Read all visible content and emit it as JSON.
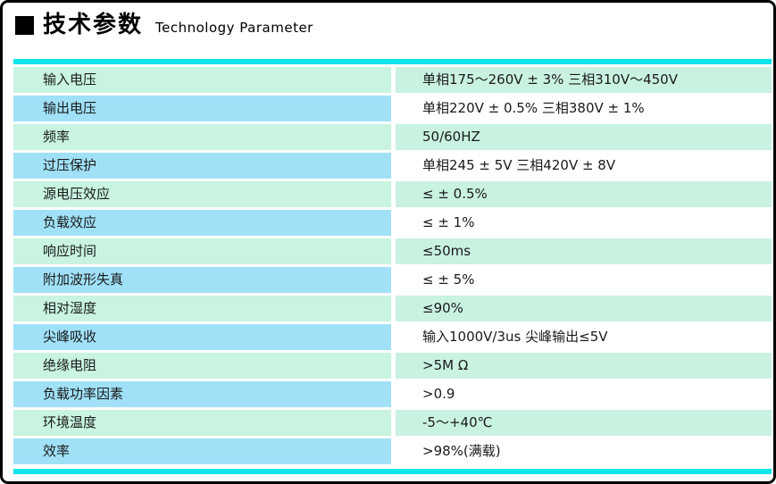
{
  "header": {
    "title_zh": "技术参数",
    "title_en": "Technology Parameter"
  },
  "colors": {
    "accent_cyan": "#0ce5ea",
    "row_left_mint": "#c8f4e0",
    "row_left_blue": "#a0e1f8",
    "row_right_mint": "#c9f2e0",
    "row_right_white": "#ffffff",
    "text": "#1a1a1a"
  },
  "table": {
    "rows": [
      {
        "label": "输入电压",
        "value": "单相175～260V ± 3% 三相310V～450V"
      },
      {
        "label": "输出电压",
        "value": "单相220V ± 0.5% 三相380V ± 1%"
      },
      {
        "label": "频率",
        "value": "50/60HZ"
      },
      {
        "label": "过压保护",
        "value": "单相245 ± 5V 三相420V ± 8V"
      },
      {
        "label": "源电压效应",
        "value": "≤ ± 0.5%"
      },
      {
        "label": "负载效应",
        "value": "≤ ± 1%"
      },
      {
        "label": "响应时间",
        "value": "≤50ms"
      },
      {
        "label": "附加波形失真",
        "value": "≤ ± 5%"
      },
      {
        "label": "相对湿度",
        "value": "≤90%"
      },
      {
        "label": "尖峰吸收",
        "value": "输入1000V/3us  尖峰输出≤5V"
      },
      {
        "label": "绝缘电阻",
        "value": ">5M Ω"
      },
      {
        "label": "负载功率因素",
        "value": ">0.9"
      },
      {
        "label": "环境温度",
        "value": "-5～+40℃"
      },
      {
        "label": "效率",
        "value": ">98%(满载)"
      }
    ]
  }
}
